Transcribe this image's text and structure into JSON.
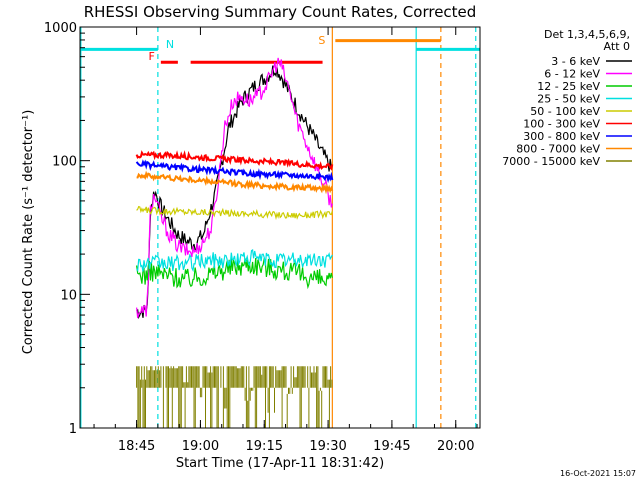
{
  "chart_data": {
    "type": "line",
    "title": "RHESSI Observing Summary Count Rates, Corrected",
    "xlabel": "Start Time (17-Apr-11 18:31:42)",
    "ylabel": "Corrected Count Rate (s⁻¹ detector⁻¹)",
    "yscale": "log",
    "ylim": [
      1,
      1000
    ],
    "xlim": [
      0,
      94
    ],
    "x_unit": "minutes after 18:31:42",
    "x_ticks": [
      "18:45",
      "19:00",
      "19:15",
      "19:30",
      "19:45",
      "20:00"
    ],
    "y_ticks": [
      "1",
      "10",
      "100",
      "1000"
    ],
    "legend": {
      "placement": "outside-right",
      "header": [
        "Det 1,3,4,5,6,9,",
        "Att 0"
      ]
    },
    "footer": "16-Oct-2021 15:07",
    "series": [
      {
        "name": "3 - 6 keV",
        "color": "#000000",
        "x": [
          13.3,
          15.5,
          16.0,
          16.5,
          17.5,
          19.0,
          21,
          23,
          25,
          27,
          29,
          32,
          35,
          38,
          41,
          44,
          46,
          47.5,
          49,
          51,
          53,
          55,
          56.5,
          58,
          59.3
        ],
        "y": [
          7.5,
          7.5,
          10,
          42,
          60,
          45,
          35,
          28,
          25,
          24,
          28,
          60,
          180,
          280,
          360,
          430,
          500,
          420,
          330,
          250,
          190,
          150,
          120,
          100,
          85
        ]
      },
      {
        "name": "6 - 12 keV",
        "color": "#ff00ff",
        "x": [
          13.3,
          15.5,
          16.0,
          16.5,
          17.5,
          19.0,
          21,
          23,
          25,
          27,
          29,
          31,
          32.5,
          34,
          36,
          38,
          40,
          42,
          44,
          46,
          47,
          48,
          49.5,
          51,
          53,
          55,
          56.5,
          58,
          59.3
        ],
        "y": [
          7.5,
          7.5,
          10,
          45,
          55,
          38,
          28,
          23,
          21,
          21,
          25,
          32,
          70,
          180,
          280,
          300,
          280,
          310,
          380,
          520,
          540,
          440,
          310,
          200,
          140,
          100,
          75,
          60,
          45
        ]
      },
      {
        "name": "12 - 25 keV",
        "color": "#00cc00",
        "x": [
          13.3,
          15.5,
          16.5,
          20,
          25,
          30,
          33,
          36,
          40,
          44,
          48,
          52,
          56,
          59.3
        ],
        "y": [
          14,
          14,
          15,
          14,
          13,
          14,
          15,
          16,
          17,
          16,
          15,
          14,
          13,
          12
        ]
      },
      {
        "name": "25 - 50 keV",
        "color": "#00e0e0",
        "x": [
          13.3,
          16.5,
          20,
          25,
          30,
          35,
          40,
          45,
          50,
          55,
          59.3
        ],
        "y": [
          17,
          17,
          17,
          17,
          18,
          18,
          19,
          18,
          18,
          18,
          18
        ]
      },
      {
        "name": "50 - 100 keV",
        "color": "#cccc00",
        "x": [
          13.3,
          20,
          30,
          40,
          50,
          59.3
        ],
        "y": [
          43,
          42,
          41,
          40,
          39,
          40
        ]
      },
      {
        "name": "100 - 300 keV",
        "color": "#ff0000",
        "x": [
          13.3,
          20,
          30,
          40,
          50,
          59.3
        ],
        "y": [
          110,
          110,
          105,
          100,
          95,
          90
        ]
      },
      {
        "name": "300 - 800 keV",
        "color": "#0000ff",
        "x": [
          13.3,
          20,
          30,
          40,
          50,
          59.3
        ],
        "y": [
          95,
          90,
          85,
          80,
          78,
          75
        ]
      },
      {
        "name": "800 - 7000 keV",
        "color": "#ff8800",
        "x": [
          13.3,
          20,
          30,
          40,
          50,
          59.3
        ],
        "y": [
          78,
          75,
          70,
          66,
          63,
          62
        ]
      },
      {
        "name": "7000 - 15000 keV",
        "color": "#808000",
        "x": [
          13.3,
          16,
          19,
          21,
          24,
          26,
          28,
          30,
          32,
          34,
          36,
          38,
          40,
          42,
          44,
          46,
          48,
          50,
          52,
          54,
          56,
          58,
          59.3
        ],
        "y": [
          2.3,
          2.7,
          2.0,
          2.8,
          2.2,
          2.9,
          1.7,
          2.6,
          2.0,
          1.4,
          2.8,
          1.6,
          1.9,
          2.5,
          1.3,
          2.7,
          1.8,
          2.4,
          2.0,
          2.6,
          1.9,
          2.3,
          2.2
        ]
      }
    ],
    "annotations": [
      {
        "text": "N",
        "color": "#00e0e0",
        "x": 19.0
      },
      {
        "text": "F",
        "color": "#ff0000",
        "x": 17.5
      },
      {
        "text": "S",
        "color": "#ff8800",
        "x": 59.3
      }
    ],
    "bars": [
      {
        "color": "#00e0e0",
        "x1": 0,
        "x2": 18.3,
        "y": 680
      },
      {
        "color": "#00e0e0",
        "x1": 79,
        "x2": 94,
        "y": 680
      },
      {
        "color": "#ff0000",
        "x1": 19.0,
        "x2": 23.0,
        "y": 545
      },
      {
        "color": "#ff0000",
        "x1": 26.0,
        "x2": 57.0,
        "y": 545
      },
      {
        "color": "#ff8800",
        "x1": 60.0,
        "x2": 84.8,
        "y": 790
      }
    ],
    "vlines": [
      {
        "color": "#00e0e0",
        "x": 0.2,
        "style": "solid"
      },
      {
        "color": "#00e0e0",
        "x": 18.3,
        "style": "dashed"
      },
      {
        "color": "#00e0e0",
        "x": 79.0,
        "style": "solid"
      },
      {
        "color": "#00e0e0",
        "x": 93.0,
        "style": "dashed"
      },
      {
        "color": "#ff8800",
        "x": 59.3,
        "style": "solid"
      },
      {
        "color": "#ff8800",
        "x": 84.8,
        "style": "dashed"
      }
    ]
  }
}
